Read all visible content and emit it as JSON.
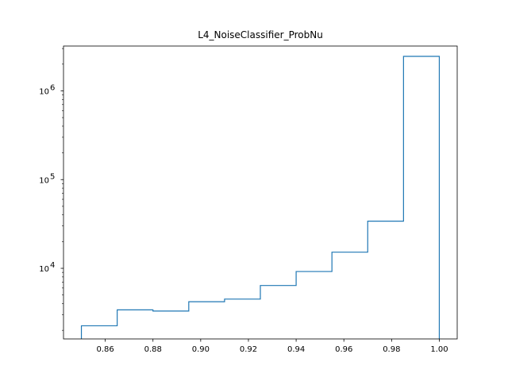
{
  "chart_data": {
    "type": "histogram",
    "title": "L4_NoiseClassifier_ProbNu",
    "xlabel": "",
    "ylabel": "",
    "xlim": [
      0.8425,
      1.0075
    ],
    "ylim": [
      1600,
      3200000
    ],
    "yscale": "log",
    "bin_edges": [
      0.85,
      0.865,
      0.88,
      0.895,
      0.91,
      0.925,
      0.94,
      0.955,
      0.97,
      0.985,
      1.0
    ],
    "counts": [
      2250,
      3400,
      3300,
      4200,
      4500,
      6400,
      9200,
      15200,
      34000,
      2450000
    ],
    "x_ticks": [
      0.86,
      0.88,
      0.9,
      0.92,
      0.94,
      0.96,
      0.98,
      1.0
    ],
    "x_tick_labels": [
      "0.86",
      "0.88",
      "0.90",
      "0.92",
      "0.94",
      "0.96",
      "0.98",
      "1.00"
    ],
    "y_major_ticks": [
      10000,
      100000,
      1000000
    ],
    "y_tick_labels": [
      {
        "base": "10",
        "exp": "4"
      },
      {
        "base": "10",
        "exp": "5"
      },
      {
        "base": "10",
        "exp": "6"
      }
    ],
    "histtype": "step",
    "grid": false,
    "legend": "none",
    "colors": {
      "series": "#1f77b4",
      "axes": "#000000",
      "background": "#ffffff"
    }
  }
}
